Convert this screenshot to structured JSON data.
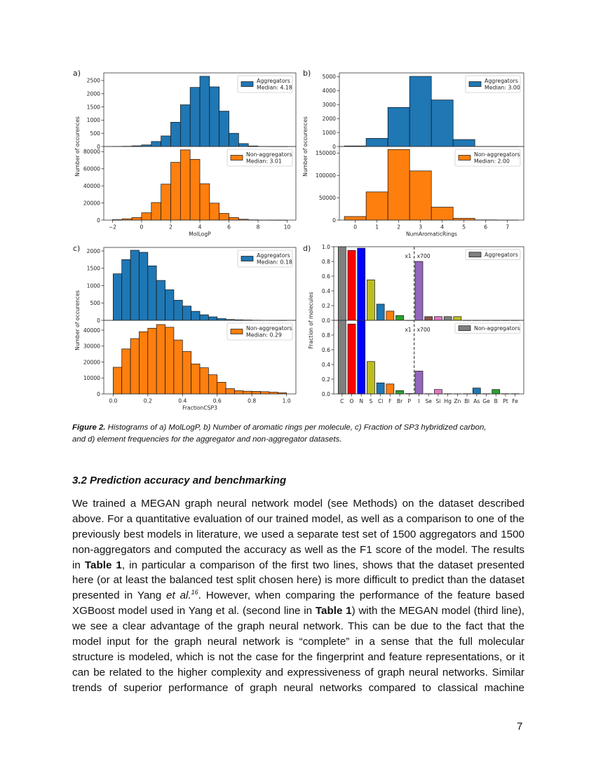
{
  "figure": {
    "caption_label": "Figure 2.",
    "caption_line1": " Histograms of a) MolLogP, b) Number of aromatic rings per molecule, c) Fraction of SP3 hybridized carbon,",
    "caption_line2": "and d) element frequencies for the aggregator and non-aggregator datasets."
  },
  "section": {
    "heading": "3.2 Prediction accuracy and benchmarking",
    "lines": [
      "We trained a MEGAN graph neural network model (see Methods) on the dataset described",
      "above. For a quantitative evaluation of our trained model, as well as a comparison to one of the",
      "previously best models in literature, we used a separate test set of 1500 aggregators and 1500",
      "non-aggregators and computed the accuracy as well as the F1 score of the model. The results",
      {
        "a": "in ",
        "b": "Table 1",
        "c": ", in particular a comparison of the first two lines, shows that the dataset presented"
      },
      "here (or at least the balanced test split chosen here) is more difficult to predict than the dataset",
      {
        "a": "presented in Yang ",
        "i": "et al.",
        "sup": "16",
        "c": ". However, when comparing the performance of the feature based"
      },
      {
        "a": "XGBoost model used in Yang et al. (second line in ",
        "b": "Table 1",
        "c": ") with the MEGAN model (third line),"
      },
      "we see a clear advantage of the graph neural network. This can be due to the fact that the",
      "model input for the graph neural network is “complete” in a sense that the full molecular",
      "structure is modeled, which is not the case for the fingerprint and feature representations, or it",
      "can be related to the higher complexity and expressiveness of graph neural networks. Similar",
      "trends of superior performance of graph neural networks compared to classical machine"
    ]
  },
  "page_number": "7",
  "chart_data": [
    {
      "panel_label": "a)",
      "type": "bar",
      "xlabel": "MolLogP",
      "ylabel": "Number of occurences",
      "xlim": [
        -2.6,
        10.6
      ],
      "xticks": [
        -2,
        0,
        2,
        4,
        6,
        8,
        10
      ],
      "xtick_labels": [
        "−2",
        "0",
        "2",
        "4",
        "6",
        "8",
        "10"
      ],
      "bin_start": -2,
      "bin_width": 0.6667,
      "grid": false,
      "legend_position": "upper right",
      "series": [
        {
          "name": "Aggregators",
          "median_label": "Median: 4.18",
          "color": "#1f77b4",
          "ylim": [
            0,
            2790
          ],
          "yticks": [
            0,
            500,
            1000,
            1500,
            2000,
            2500
          ],
          "values": [
            5,
            10,
            25,
            60,
            190,
            400,
            920,
            1580,
            2240,
            2660,
            2260,
            1340,
            500,
            110,
            20,
            5,
            2,
            1
          ]
        },
        {
          "name": "Non-aggregators",
          "median_label": "Median: 3.01",
          "color": "#ff7f0e",
          "ylim": [
            0,
            86000
          ],
          "yticks": [
            0,
            20000,
            40000,
            60000,
            80000
          ],
          "values": [
            500,
            1500,
            3000,
            8500,
            20500,
            42000,
            67500,
            82000,
            71000,
            42500,
            19800,
            7800,
            3000,
            1000,
            300,
            100,
            50,
            20
          ]
        }
      ]
    },
    {
      "panel_label": "b)",
      "type": "bar",
      "xlabel": "NumAromaticRings",
      "ylabel": "Number of occurences",
      "xlim": [
        -0.73,
        7.75
      ],
      "xticks": [
        0,
        1,
        2,
        3,
        4,
        5,
        6,
        7
      ],
      "xtick_labels": [
        "0",
        "1",
        "2",
        "3",
        "4",
        "5",
        "6",
        "7"
      ],
      "bin_start": -0.5,
      "bin_width": 1,
      "grid": false,
      "legend_position": "upper right",
      "series": [
        {
          "name": "Aggregators",
          "median_label": "Median: 3.00",
          "color": "#1f77b4",
          "ylim": [
            0,
            5270
          ],
          "yticks": [
            0,
            1000,
            2000,
            3000,
            4000,
            5000
          ],
          "values": [
            40,
            580,
            2800,
            5020,
            3330,
            500,
            10,
            5
          ]
        },
        {
          "name": "Non-aggregators",
          "median_label": "Median: 2.00",
          "color": "#ff7f0e",
          "ylim": [
            0,
            164700
          ],
          "yticks": [
            0,
            50000,
            100000,
            150000
          ],
          "values": [
            8000,
            63000,
            158000,
            110000,
            29000,
            4000,
            500,
            200
          ]
        }
      ]
    },
    {
      "panel_label": "c)",
      "type": "bar",
      "xlabel": "FractionCSP3",
      "ylabel": "Number of occurences",
      "xlim": [
        -0.054,
        1.054
      ],
      "xticks": [
        0,
        0.2,
        0.4,
        0.6,
        0.8,
        1.0
      ],
      "xtick_labels": [
        "0.0",
        "0.2",
        "0.4",
        "0.6",
        "0.8",
        "1.0"
      ],
      "bin_start": 0,
      "bin_width": 0.05,
      "grid": false,
      "legend_position": "upper right",
      "series": [
        {
          "name": "Aggregators",
          "median_label": "Median: 0.18",
          "color": "#1f77b4",
          "ylim": [
            0,
            2101
          ],
          "yticks": [
            0,
            500,
            1000,
            1500,
            2000
          ],
          "values": [
            1340,
            1750,
            2020,
            1960,
            1570,
            1150,
            880,
            580,
            410,
            260,
            160,
            100,
            50,
            25,
            15,
            10,
            5,
            3,
            2,
            1
          ]
        },
        {
          "name": "Non-aggregators",
          "median_label": "Median: 0.29",
          "color": "#ff7f0e",
          "ylim": [
            0,
            46150
          ],
          "yticks": [
            0,
            10000,
            20000,
            30000,
            40000
          ],
          "values": [
            16700,
            28200,
            34700,
            39000,
            41200,
            43500,
            41800,
            33800,
            26600,
            18800,
            16400,
            12000,
            7300,
            3300,
            2000,
            1700,
            1600,
            1400,
            1100,
            700
          ]
        }
      ]
    },
    {
      "panel_label": "d)",
      "type": "bar",
      "ylabel": "Fraction of molecules",
      "categories": [
        "C",
        "O",
        "N",
        "S",
        "Cl",
        "F",
        "Br",
        "P",
        "I",
        "Se",
        "Si",
        "Hg",
        "Zn",
        "Bi",
        "As",
        "Ge",
        "B",
        "Pt",
        "Fe"
      ],
      "colors": [
        "#7f7f7f",
        "#ff0000",
        "#0000ff",
        "#bcbd22",
        "#1f77b4",
        "#ff7f0e",
        "#2ca02c",
        "#d62728",
        "#9467bd",
        "#8c564b",
        "#e377c2",
        "#7f7f7f",
        "#bcbd22",
        "#17becf",
        "#1f77b4",
        "#ff7f0e",
        "#2ca02c",
        "#d62728",
        "#9467bd"
      ],
      "scale_annotations": [
        "x1",
        "x700"
      ],
      "scale_break_after": "P",
      "grid": false,
      "legend_position": "upper right",
      "series": [
        {
          "name": "Aggregators",
          "color": "#7f7f7f",
          "ylim": [
            0,
            1.0
          ],
          "yticks": [
            0.0,
            0.2,
            0.4,
            0.6,
            0.8,
            1.0
          ],
          "values": [
            1.0,
            0.95,
            0.98,
            0.55,
            0.22,
            0.125,
            0.065,
            0.0,
            0.8,
            0.05,
            0.05,
            0.05,
            0.05,
            0.0,
            0.0,
            0.0,
            0.0,
            0.0,
            0.0
          ]
        },
        {
          "name": "Non-aggregators",
          "color": "#7f7f7f",
          "ylim": [
            0,
            1.0
          ],
          "yticks": [
            0.0,
            0.2,
            0.4,
            0.6,
            0.8
          ],
          "values": [
            1.0,
            0.95,
            1.0,
            0.44,
            0.15,
            0.135,
            0.045,
            0.005,
            0.31,
            0.003,
            0.06,
            0.003,
            0.002,
            0.003,
            0.08,
            0.003,
            0.06,
            0.003,
            0.003
          ]
        }
      ]
    }
  ]
}
